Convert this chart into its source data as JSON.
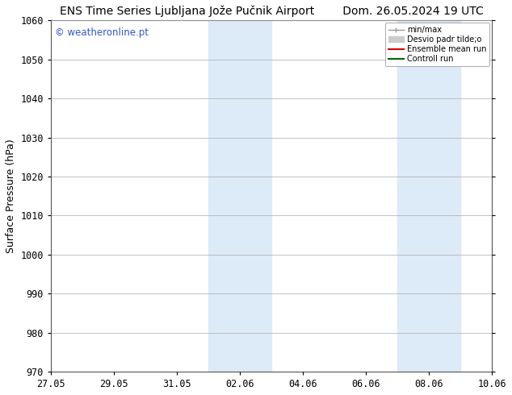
{
  "title": "ENS Time Series Ljubljana Jože Pučnik Airport        Dom. 26.05.2024 19 UTC",
  "title_left": "ENS Time Series Ljubljana Jože Pučnik Airport",
  "title_right": "Dom. 26.05.2024 19 UTC",
  "ylabel": "Surface Pressure (hPa)",
  "ylim": [
    970,
    1060
  ],
  "yticks": [
    970,
    980,
    990,
    1000,
    1010,
    1020,
    1030,
    1040,
    1050,
    1060
  ],
  "xtick_labels": [
    "27.05",
    "29.05",
    "31.05",
    "02.06",
    "04.06",
    "06.06",
    "08.06",
    "10.06"
  ],
  "xtick_positions": [
    0,
    2,
    4,
    6,
    8,
    10,
    12,
    14
  ],
  "shaded_bands": [
    {
      "x_start": 5.0,
      "x_end": 7.0
    },
    {
      "x_start": 11.0,
      "x_end": 13.0
    }
  ],
  "shaded_color": "#ddeaf7",
  "watermark_text": "© weatheronline.pt",
  "watermark_color": "#3355cc",
  "legend_labels": [
    "min/max",
    "Desvio padr tilde;o",
    "Ensemble mean run",
    "Controll run"
  ],
  "legend_colors": [
    "#999999",
    "#cccccc",
    "#dd0000",
    "#006600"
  ],
  "bg_color": "#ffffff",
  "grid_color": "#aaaaaa",
  "spine_color": "#555555",
  "title_fontsize": 10,
  "label_fontsize": 9,
  "tick_fontsize": 8.5
}
